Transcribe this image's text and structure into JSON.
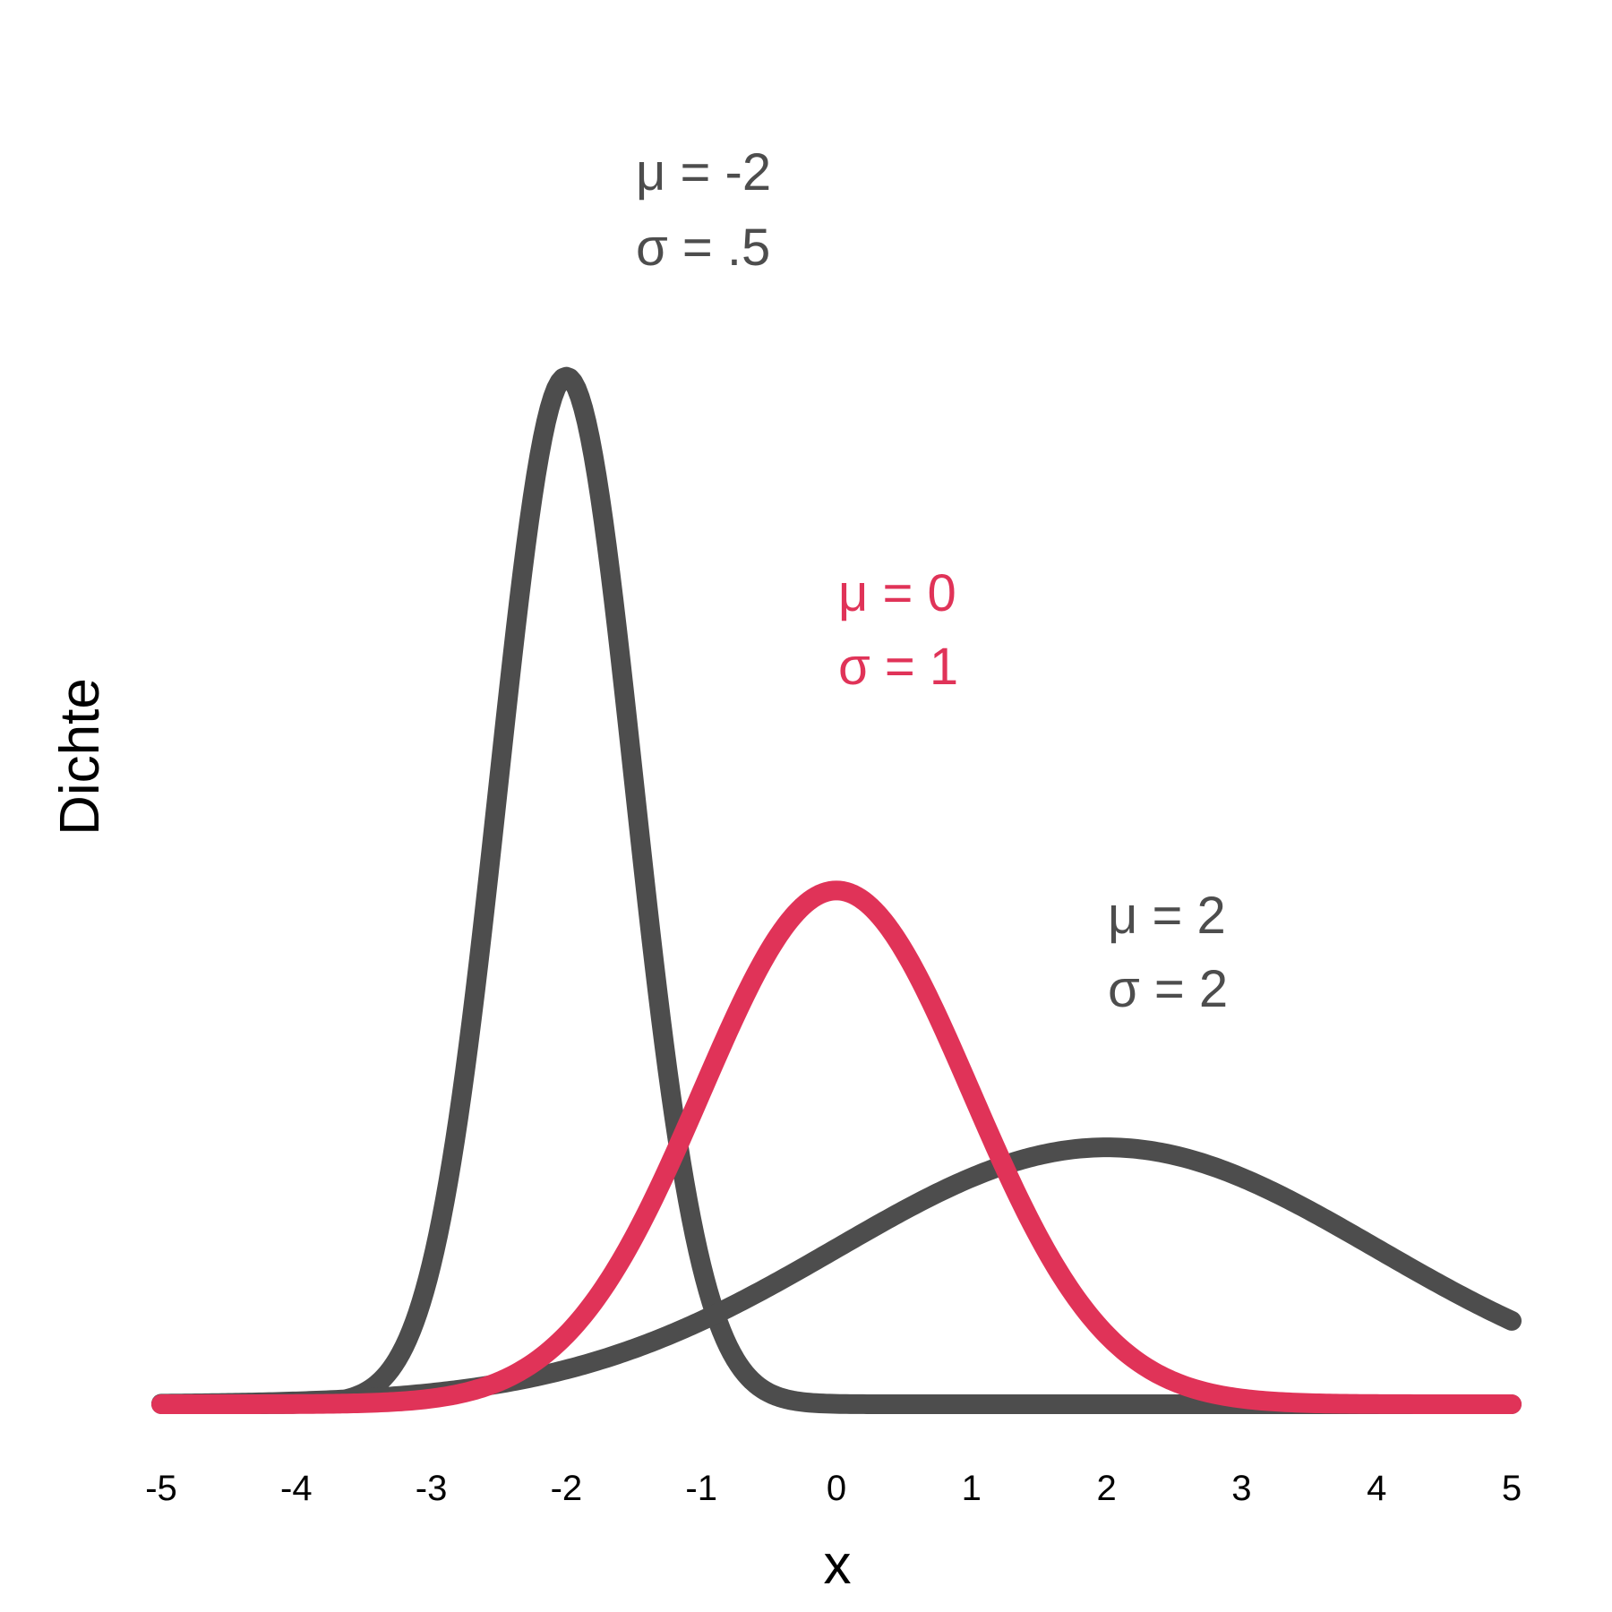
{
  "chart_data": {
    "type": "line",
    "xlabel": "x",
    "ylabel": "Dichte",
    "xlim": [
      -5,
      5
    ],
    "x_ticks": [
      "-5",
      "-4",
      "-3",
      "-2",
      "-1",
      "0",
      "1",
      "2",
      "3",
      "4",
      "5"
    ],
    "grid": false,
    "series": [
      {
        "mean": -2,
        "sd": 0.5,
        "color": "#4d4d4d",
        "label_mu": "μ = -2",
        "label_sigma": "σ = .5"
      },
      {
        "mean": 2,
        "sd": 2,
        "color": "#4d4d4d",
        "label_mu": "μ = 2",
        "label_sigma": "σ = 2"
      },
      {
        "mean": 0,
        "sd": 1,
        "color": "#e03358",
        "label_mu": "μ = 0",
        "label_sigma": "σ = 1"
      }
    ]
  }
}
